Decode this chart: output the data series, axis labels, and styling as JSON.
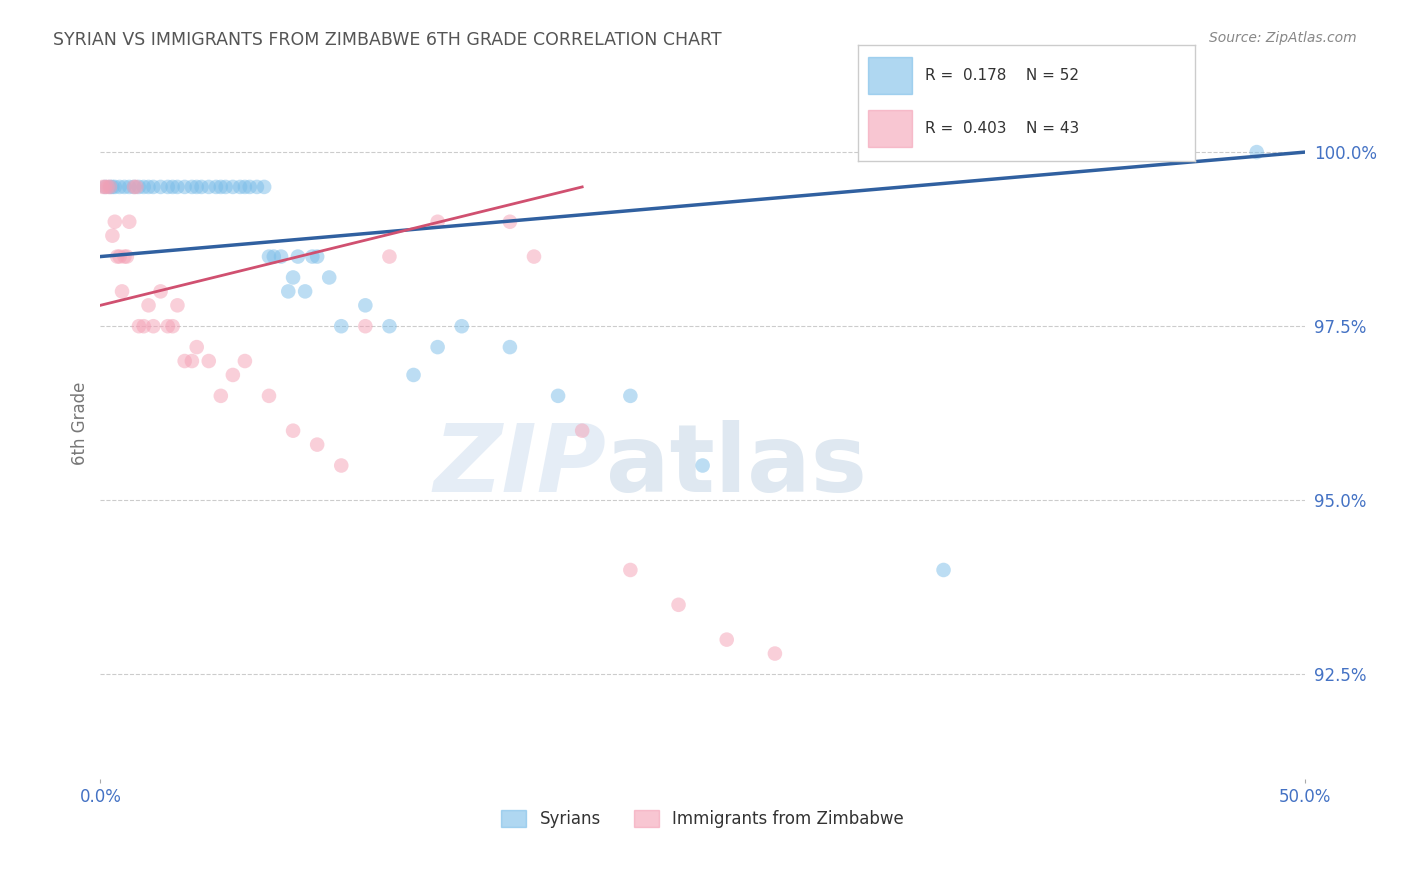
{
  "title": "SYRIAN VS IMMIGRANTS FROM ZIMBABWE 6TH GRADE CORRELATION CHART",
  "source": "Source: ZipAtlas.com",
  "ylabel": "6th Grade",
  "xlim": [
    0.0,
    50.0
  ],
  "ylim": [
    91.0,
    101.2
  ],
  "ytick_positions": [
    92.5,
    95.0,
    97.5,
    100.0
  ],
  "ytick_labels": [
    "92.5%",
    "95.0%",
    "97.5%",
    "100.0%"
  ],
  "legend_r_blue": "R =  0.178",
  "legend_n_blue": "N = 52",
  "legend_r_pink": "R =  0.403",
  "legend_n_pink": "N = 43",
  "blue_color": "#7bbde8",
  "pink_color": "#f4a0b5",
  "blue_line_color": "#3060a0",
  "pink_line_color": "#d05070",
  "marker_size": 110,
  "marker_alpha": 0.5,
  "blue_scatter_x": [
    0.2,
    0.4,
    0.5,
    0.6,
    0.8,
    1.0,
    1.2,
    1.4,
    1.6,
    1.8,
    2.0,
    2.2,
    2.5,
    2.8,
    3.0,
    3.2,
    3.5,
    3.8,
    4.0,
    4.2,
    4.5,
    4.8,
    5.0,
    5.2,
    5.5,
    5.8,
    6.0,
    6.2,
    6.5,
    6.8,
    7.0,
    7.2,
    7.5,
    7.8,
    8.0,
    8.2,
    8.5,
    8.8,
    9.0,
    9.5,
    10.0,
    11.0,
    12.0,
    13.0,
    14.0,
    15.0,
    17.0,
    19.0,
    22.0,
    25.0,
    35.0,
    48.0
  ],
  "blue_scatter_y": [
    99.5,
    99.5,
    99.5,
    99.5,
    99.5,
    99.5,
    99.5,
    99.5,
    99.5,
    99.5,
    99.5,
    99.5,
    99.5,
    99.5,
    99.5,
    99.5,
    99.5,
    99.5,
    99.5,
    99.5,
    99.5,
    99.5,
    99.5,
    99.5,
    99.5,
    99.5,
    99.5,
    99.5,
    99.5,
    99.5,
    98.5,
    98.5,
    98.5,
    98.0,
    98.2,
    98.5,
    98.0,
    98.5,
    98.5,
    98.2,
    97.5,
    97.8,
    97.5,
    96.8,
    97.2,
    97.5,
    97.2,
    96.5,
    96.5,
    95.5,
    94.0,
    100.0
  ],
  "pink_scatter_x": [
    0.1,
    0.2,
    0.3,
    0.4,
    0.5,
    0.6,
    0.7,
    0.8,
    0.9,
    1.0,
    1.1,
    1.2,
    1.4,
    1.5,
    1.6,
    1.8,
    2.0,
    2.2,
    2.5,
    2.8,
    3.0,
    3.2,
    3.5,
    3.8,
    4.0,
    4.5,
    5.0,
    5.5,
    6.0,
    7.0,
    8.0,
    9.0,
    10.0,
    11.0,
    12.0,
    14.0,
    17.0,
    18.0,
    20.0,
    22.0,
    24.0,
    26.0,
    28.0
  ],
  "pink_scatter_y": [
    99.5,
    99.5,
    99.5,
    99.5,
    98.8,
    99.0,
    98.5,
    98.5,
    98.0,
    98.5,
    98.5,
    99.0,
    99.5,
    99.5,
    97.5,
    97.5,
    97.8,
    97.5,
    98.0,
    97.5,
    97.5,
    97.8,
    97.0,
    97.0,
    97.2,
    97.0,
    96.5,
    96.8,
    97.0,
    96.5,
    96.0,
    95.8,
    95.5,
    97.5,
    98.5,
    99.0,
    99.0,
    98.5,
    96.0,
    94.0,
    93.5,
    93.0,
    92.8
  ],
  "watermark_zip": "ZIP",
  "watermark_atlas": "atlas",
  "background_color": "#ffffff",
  "grid_color": "#cccccc",
  "title_color": "#555555",
  "axis_label_color": "#777777",
  "tick_label_color": "#4472c4",
  "source_color": "#888888"
}
